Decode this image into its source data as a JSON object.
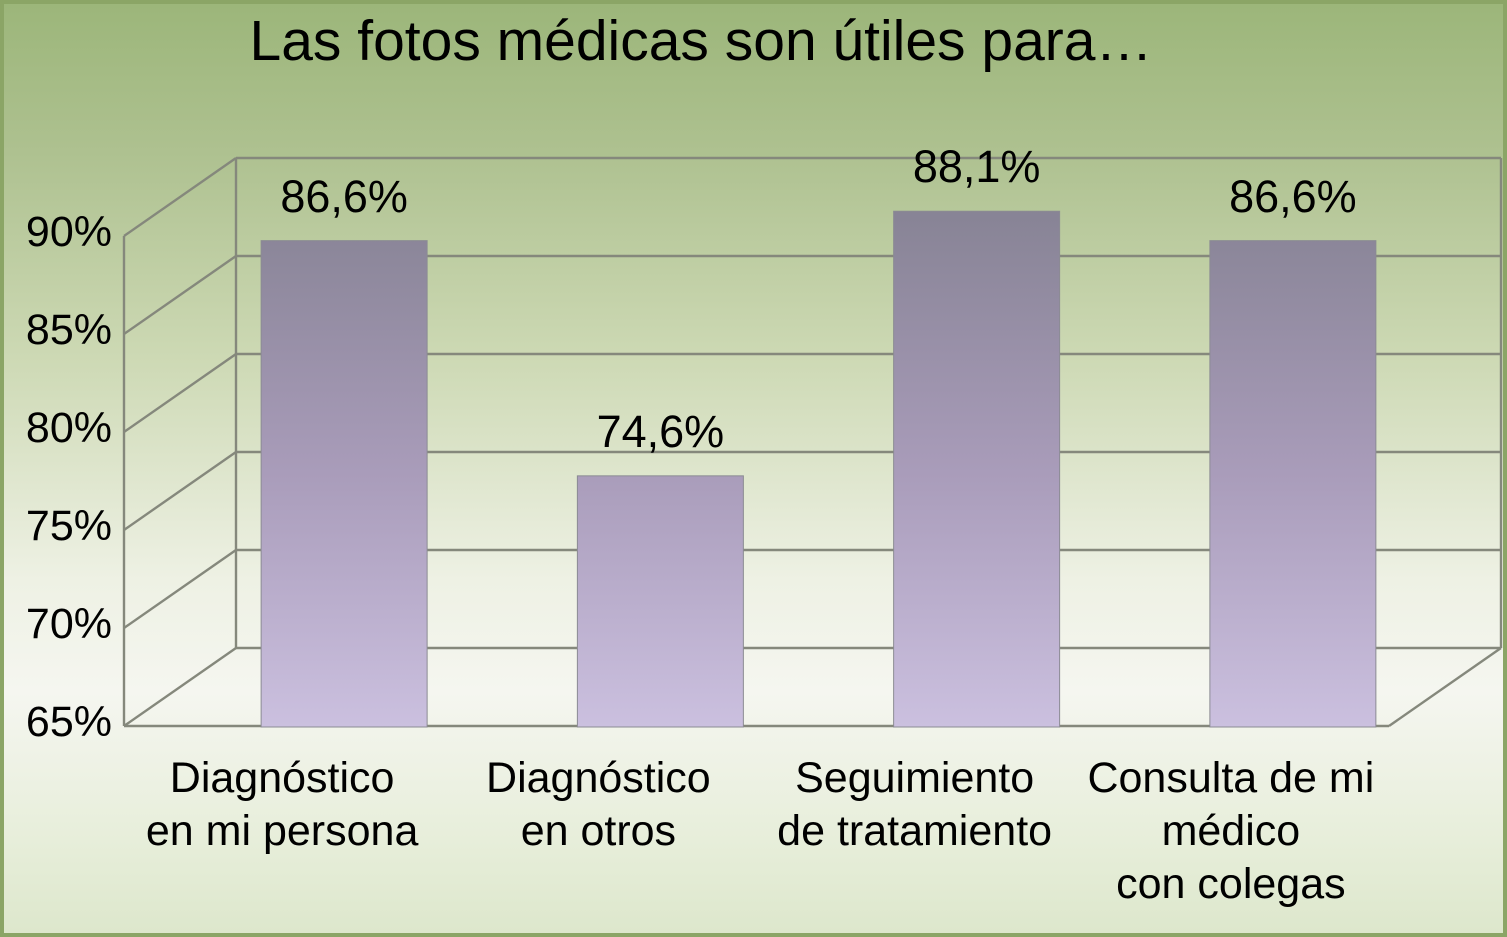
{
  "chart_data": {
    "type": "bar",
    "style": "3d-perspective-single-series",
    "title": "Las fotos médicas son útiles para…",
    "categories": [
      "Diagnóstico\nen mi persona",
      "Diagnóstico\nen otros",
      "Seguimiento\nde tratamiento",
      "Consulta de mi\nmédico\ncon colegas"
    ],
    "values": [
      86.6,
      74.6,
      88.1,
      86.6
    ],
    "value_labels": [
      "86,6%",
      "74,6%",
      "88,1%",
      "86,6%"
    ],
    "y_ticks": [
      "65%",
      "70%",
      "75%",
      "80%",
      "85%",
      "90%"
    ],
    "y_tick_values": [
      65,
      70,
      75,
      80,
      85,
      90
    ],
    "ylim": [
      65,
      90
    ],
    "xlabel": "",
    "ylabel": "",
    "legend": "none",
    "grid": true,
    "colors": {
      "bar_top": "#807e8d",
      "bar_mid": "#a99cba",
      "bar_bottom": "#ccc1e0",
      "bar_outline": "#8b8b93",
      "gridline": "#85887c",
      "background_top": "#9cb67a",
      "background_bottom": "#dde7cc",
      "text": "#000000"
    }
  }
}
